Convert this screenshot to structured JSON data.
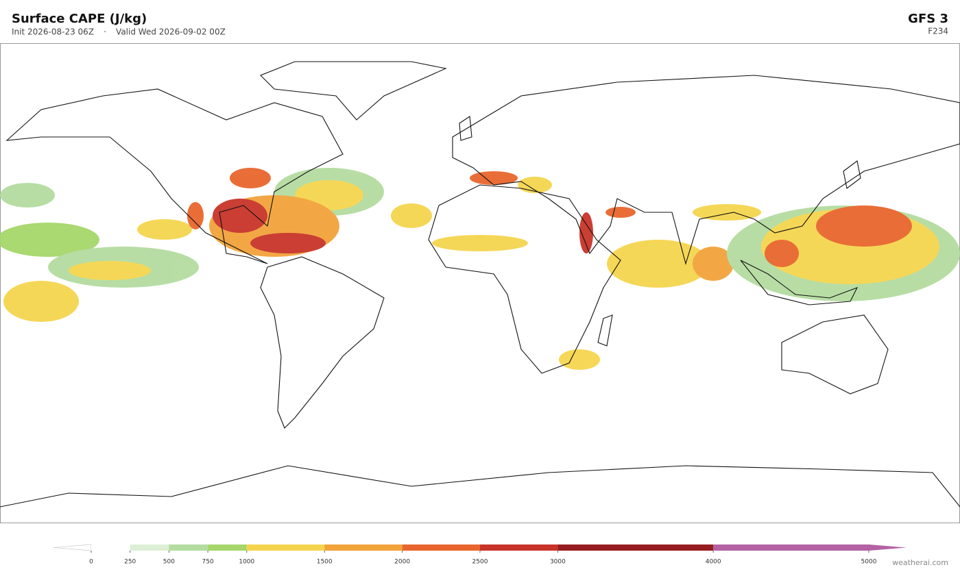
{
  "header": {
    "title": "Surface CAPE  (J/kg)",
    "init": "Init 2026-08-23 06Z",
    "separator": "·",
    "valid": "Valid Wed 2026-09-02 00Z",
    "model": "GFS  3",
    "forecast_hour": "F234"
  },
  "colorbar": {
    "lim": [
      0,
      5000
    ],
    "ticks": [
      0,
      250,
      500,
      750,
      1000,
      1500,
      2000,
      2500,
      3000,
      4000,
      5000
    ],
    "colors": [
      "#ffffff",
      "#dcefd6",
      "#b4dca0",
      "#a6d66a",
      "#f5d54f",
      "#f2a33a",
      "#e8662d",
      "#c8342a",
      "#961e20",
      "#b462a4"
    ]
  },
  "watermark": "weatherai.com"
}
